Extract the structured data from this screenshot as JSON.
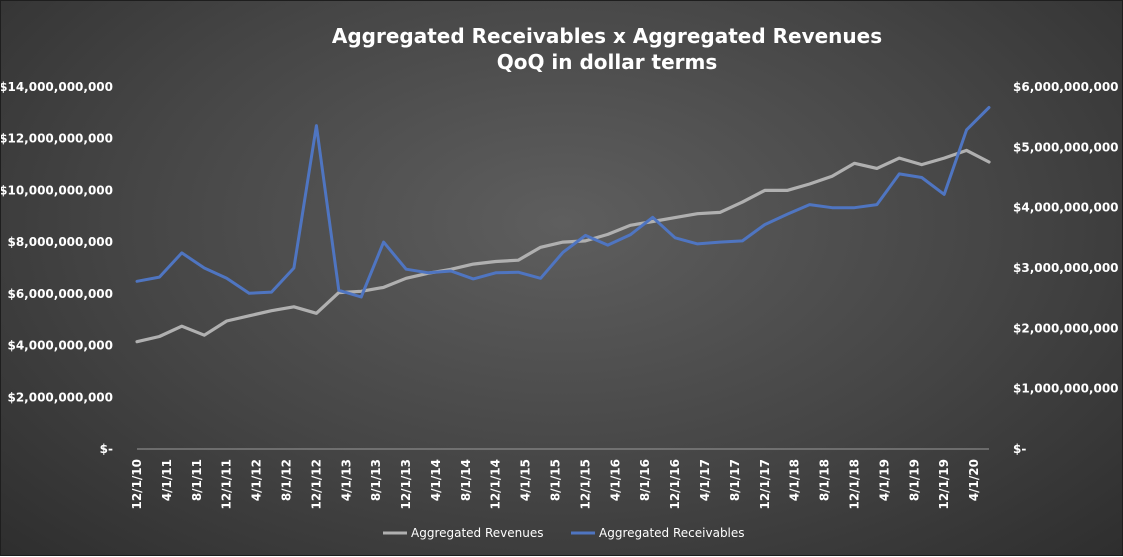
{
  "chart_data": {
    "type": "line",
    "title": "Aggregated Receivables x Aggregated Revenues",
    "subtitle": "QoQ in dollar terms",
    "x_tick_labels": [
      "12/1/10",
      "4/1/11",
      "8/1/11",
      "12/1/11",
      "4/1/12",
      "8/1/12",
      "12/1/12",
      "4/1/13",
      "8/1/13",
      "12/1/13",
      "4/1/14",
      "8/1/14",
      "12/1/14",
      "4/1/15",
      "8/1/15",
      "12/1/15",
      "4/1/16",
      "8/1/16",
      "12/1/16",
      "4/1/17",
      "8/1/17",
      "12/1/17",
      "4/1/18",
      "8/1/18",
      "12/1/18",
      "4/1/19",
      "8/1/19",
      "12/1/19",
      "4/1/20"
    ],
    "y_left": {
      "range": [
        0,
        14000000000
      ],
      "tick_labels": [
        "$-",
        "$2,000,000,000",
        "$4,000,000,000",
        "$6,000,000,000",
        "$8,000,000,000",
        "$10,000,000,000",
        "$12,000,000,000",
        "$14,000,000,000"
      ]
    },
    "y_right": {
      "range": [
        0,
        6000000000
      ],
      "tick_labels": [
        "$-",
        "$1,000,000,000",
        "$2,000,000,000",
        "$3,000,000,000",
        "$4,000,000,000",
        "$5,000,000,000",
        "$6,000,000,000"
      ]
    },
    "grid": false,
    "legend_position": "bottom",
    "series": [
      {
        "name": "Aggregated Revenues",
        "axis": "left",
        "color": "#b0b0b0",
        "values": [
          4150000000,
          4350000000,
          4750000000,
          4400000000,
          4950000000,
          5150000000,
          5350000000,
          5500000000,
          5250000000,
          6050000000,
          6100000000,
          6250000000,
          6600000000,
          6800000000,
          6950000000,
          7150000000,
          7250000000,
          7300000000,
          7800000000,
          8000000000,
          8050000000,
          8300000000,
          8650000000,
          8800000000,
          8950000000,
          9100000000,
          9150000000,
          9550000000,
          10000000000,
          10000000000,
          10250000000,
          10550000000,
          11050000000,
          10850000000,
          11250000000,
          11000000000,
          11250000000,
          11550000000,
          11100000000
        ]
      },
      {
        "name": "Aggregated Receivables",
        "axis": "right",
        "color": "#4f75c1",
        "values": [
          2780000000,
          2850000000,
          3250000000,
          3000000000,
          2830000000,
          2580000000,
          2600000000,
          3000000000,
          5360000000,
          2630000000,
          2520000000,
          3430000000,
          2980000000,
          2920000000,
          2950000000,
          2820000000,
          2920000000,
          2930000000,
          2830000000,
          3260000000,
          3540000000,
          3380000000,
          3550000000,
          3840000000,
          3500000000,
          3400000000,
          3430000000,
          3450000000,
          3720000000,
          3890000000,
          4050000000,
          4000000000,
          4000000000,
          4050000000,
          4560000000,
          4500000000,
          4220000000,
          5290000000,
          5660000000
        ]
      }
    ]
  }
}
